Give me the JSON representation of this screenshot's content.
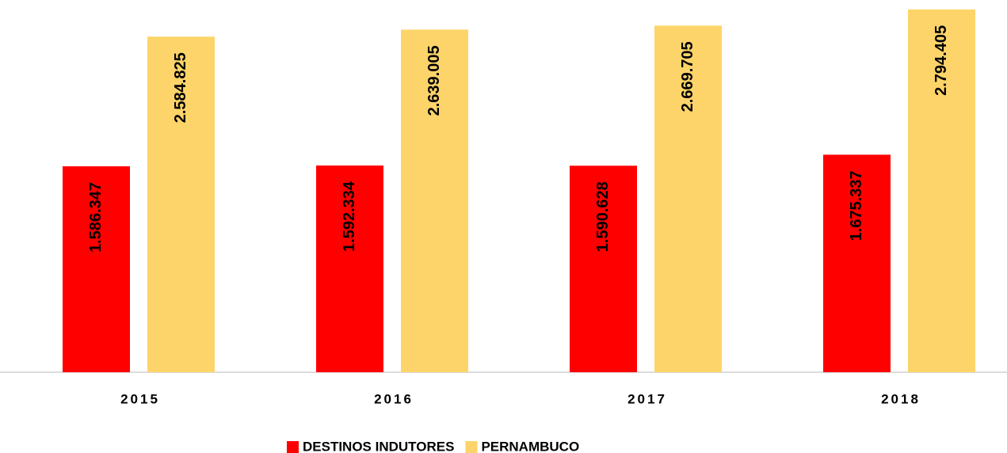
{
  "chart_data": {
    "type": "bar",
    "categories": [
      "2015",
      "2016",
      "2017",
      "2018"
    ],
    "series": [
      {
        "name": "DESTINOS INDUTORES",
        "color": "#ff0000",
        "values": [
          1586347,
          1592334,
          1590628,
          1675337
        ],
        "value_labels": [
          "1.586.347",
          "1.592.334",
          "1.590.628",
          "1.675.337"
        ]
      },
      {
        "name": "PERNAMBUCO",
        "color": "#fdd469",
        "values": [
          2584825,
          2639005,
          2669705,
          2794405
        ],
        "value_labels": [
          "2.584.825",
          "2.639.005",
          "2.669.705",
          "2.794.405"
        ]
      }
    ],
    "ylim": [
      0,
      2800000
    ],
    "legend": "bottom"
  }
}
